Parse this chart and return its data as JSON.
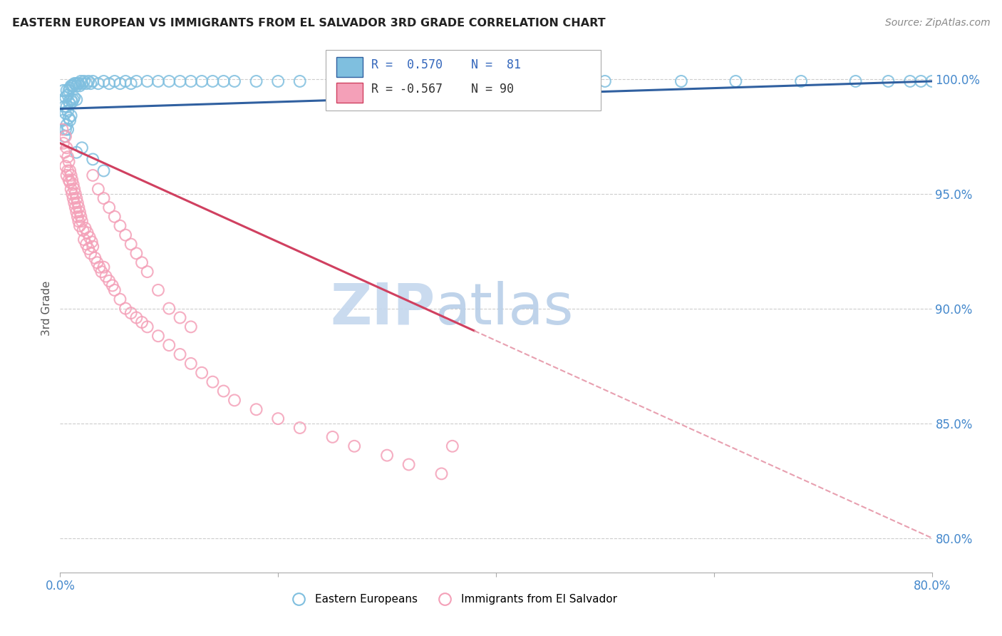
{
  "title": "EASTERN EUROPEAN VS IMMIGRANTS FROM EL SALVADOR 3RD GRADE CORRELATION CHART",
  "source": "Source: ZipAtlas.com",
  "ylabel": "3rd Grade",
  "ytick_labels": [
    "100.0%",
    "95.0%",
    "90.0%",
    "85.0%",
    "80.0%"
  ],
  "ytick_positions": [
    1.0,
    0.95,
    0.9,
    0.85,
    0.8
  ],
  "legend_blue_label": "Eastern Europeans",
  "legend_pink_label": "Immigrants from El Salvador",
  "r_blue": 0.57,
  "n_blue": 81,
  "r_pink": -0.567,
  "n_pink": 90,
  "blue_color": "#7fbfdf",
  "pink_color": "#f4a0b8",
  "blue_line_color": "#3060a0",
  "pink_line_color": "#d04060",
  "pink_dash_color": "#e8a0b0",
  "background_color": "#ffffff",
  "xlim": [
    0.0,
    0.8
  ],
  "ylim": [
    0.785,
    1.015
  ],
  "blue_scatter_x": [
    0.002,
    0.003,
    0.003,
    0.004,
    0.004,
    0.005,
    0.005,
    0.005,
    0.006,
    0.006,
    0.006,
    0.007,
    0.007,
    0.007,
    0.008,
    0.008,
    0.008,
    0.009,
    0.009,
    0.009,
    0.01,
    0.01,
    0.01,
    0.011,
    0.011,
    0.012,
    0.012,
    0.013,
    0.013,
    0.014,
    0.015,
    0.015,
    0.016,
    0.017,
    0.018,
    0.019,
    0.02,
    0.022,
    0.024,
    0.026,
    0.028,
    0.03,
    0.035,
    0.04,
    0.045,
    0.05,
    0.055,
    0.06,
    0.065,
    0.07,
    0.08,
    0.09,
    0.1,
    0.11,
    0.12,
    0.13,
    0.14,
    0.15,
    0.16,
    0.18,
    0.2,
    0.22,
    0.25,
    0.28,
    0.31,
    0.35,
    0.4,
    0.45,
    0.5,
    0.57,
    0.62,
    0.68,
    0.73,
    0.76,
    0.78,
    0.79,
    0.8,
    0.02,
    0.03,
    0.04,
    0.015
  ],
  "blue_scatter_y": [
    0.99,
    0.982,
    0.995,
    0.988,
    0.975,
    0.992,
    0.985,
    0.978,
    0.995,
    0.988,
    0.98,
    0.993,
    0.986,
    0.978,
    0.995,
    0.99,
    0.983,
    0.996,
    0.989,
    0.982,
    0.997,
    0.991,
    0.984,
    0.997,
    0.99,
    0.997,
    0.991,
    0.998,
    0.992,
    0.998,
    0.997,
    0.991,
    0.998,
    0.998,
    0.997,
    0.999,
    0.998,
    0.999,
    0.998,
    0.999,
    0.998,
    0.999,
    0.998,
    0.999,
    0.998,
    0.999,
    0.998,
    0.999,
    0.998,
    0.999,
    0.999,
    0.999,
    0.999,
    0.999,
    0.999,
    0.999,
    0.999,
    0.999,
    0.999,
    0.999,
    0.999,
    0.999,
    0.999,
    0.999,
    0.999,
    0.999,
    0.999,
    0.999,
    0.999,
    0.999,
    0.999,
    0.999,
    0.999,
    0.999,
    0.999,
    0.999,
    0.999,
    0.97,
    0.965,
    0.96,
    0.968
  ],
  "pink_scatter_x": [
    0.002,
    0.003,
    0.004,
    0.005,
    0.005,
    0.006,
    0.006,
    0.007,
    0.007,
    0.008,
    0.008,
    0.009,
    0.009,
    0.01,
    0.01,
    0.011,
    0.011,
    0.012,
    0.012,
    0.013,
    0.013,
    0.014,
    0.014,
    0.015,
    0.015,
    0.016,
    0.016,
    0.017,
    0.017,
    0.018,
    0.018,
    0.019,
    0.02,
    0.021,
    0.022,
    0.023,
    0.024,
    0.025,
    0.026,
    0.027,
    0.028,
    0.029,
    0.03,
    0.032,
    0.034,
    0.036,
    0.038,
    0.04,
    0.042,
    0.045,
    0.048,
    0.05,
    0.055,
    0.06,
    0.065,
    0.07,
    0.075,
    0.08,
    0.09,
    0.1,
    0.11,
    0.12,
    0.13,
    0.14,
    0.15,
    0.16,
    0.18,
    0.2,
    0.22,
    0.25,
    0.27,
    0.3,
    0.32,
    0.35,
    0.03,
    0.035,
    0.04,
    0.045,
    0.05,
    0.055,
    0.06,
    0.065,
    0.07,
    0.075,
    0.08,
    0.09,
    0.1,
    0.11,
    0.12,
    0.36
  ],
  "pink_scatter_y": [
    0.978,
    0.972,
    0.968,
    0.975,
    0.962,
    0.97,
    0.958,
    0.966,
    0.96,
    0.964,
    0.956,
    0.96,
    0.955,
    0.958,
    0.952,
    0.956,
    0.95,
    0.954,
    0.948,
    0.952,
    0.946,
    0.95,
    0.944,
    0.948,
    0.942,
    0.946,
    0.94,
    0.944,
    0.938,
    0.942,
    0.936,
    0.94,
    0.938,
    0.934,
    0.93,
    0.935,
    0.928,
    0.933,
    0.926,
    0.931,
    0.924,
    0.929,
    0.927,
    0.922,
    0.92,
    0.918,
    0.916,
    0.918,
    0.914,
    0.912,
    0.91,
    0.908,
    0.904,
    0.9,
    0.898,
    0.896,
    0.894,
    0.892,
    0.888,
    0.884,
    0.88,
    0.876,
    0.872,
    0.868,
    0.864,
    0.86,
    0.856,
    0.852,
    0.848,
    0.844,
    0.84,
    0.836,
    0.832,
    0.828,
    0.958,
    0.952,
    0.948,
    0.944,
    0.94,
    0.936,
    0.932,
    0.928,
    0.924,
    0.92,
    0.916,
    0.908,
    0.9,
    0.896,
    0.892,
    0.84
  ]
}
